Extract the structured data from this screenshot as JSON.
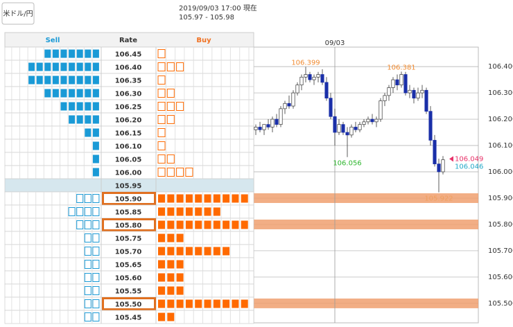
{
  "header": {
    "button": "米ドル/円",
    "timestamp": "2019/09/03 17:00 現在",
    "quote": "105.97 - 105.98"
  },
  "order_book": {
    "columns": [
      "Sell",
      "Rate",
      "Buy"
    ],
    "rows": [
      {
        "rate": "106.45",
        "sell": 7,
        "buy": 1
      },
      {
        "rate": "106.40",
        "sell": 9,
        "buy": 3
      },
      {
        "rate": "106.35",
        "sell": 9,
        "buy": 1
      },
      {
        "rate": "106.30",
        "sell": 7,
        "buy": 2
      },
      {
        "rate": "106.25",
        "sell": 5,
        "buy": 3
      },
      {
        "rate": "106.20",
        "sell": 4,
        "buy": 2
      },
      {
        "rate": "106.15",
        "sell": 2,
        "buy": 1
      },
      {
        "rate": "106.10",
        "sell": 1,
        "buy": 1
      },
      {
        "rate": "106.05",
        "sell": 1,
        "buy": 2
      },
      {
        "rate": "106.00",
        "sell": 1,
        "buy": 4
      },
      {
        "rate": "105.95",
        "current": true
      },
      {
        "rate": "105.90",
        "sell": 3,
        "buy": 10,
        "highlight": true
      },
      {
        "rate": "105.85",
        "sell": 4,
        "buy": 7
      },
      {
        "rate": "105.80",
        "sell": 3,
        "buy": 10,
        "highlight": true
      },
      {
        "rate": "105.75",
        "sell": 2,
        "buy": 3
      },
      {
        "rate": "105.70",
        "sell": 2,
        "buy": 8
      },
      {
        "rate": "105.65",
        "sell": 2,
        "buy": 3
      },
      {
        "rate": "105.60",
        "sell": 2,
        "buy": 3
      },
      {
        "rate": "105.55",
        "sell": 2,
        "buy": 3
      },
      {
        "rate": "105.50",
        "sell": 2,
        "buy": 10,
        "highlight": true
      },
      {
        "rate": "105.45",
        "sell": 2,
        "buy": 2
      }
    ]
  },
  "chart_data": {
    "type": "candlestick",
    "candles": [
      [
        106.16,
        106.18,
        106.14,
        106.17
      ],
      [
        106.17,
        106.19,
        106.15,
        106.16
      ],
      [
        106.16,
        106.18,
        106.14,
        106.18
      ],
      [
        106.18,
        106.2,
        106.16,
        106.17
      ],
      [
        106.17,
        106.21,
        106.15,
        106.2
      ],
      [
        106.2,
        106.22,
        106.17,
        106.18
      ],
      [
        106.18,
        106.25,
        106.17,
        106.24
      ],
      [
        106.24,
        106.27,
        106.22,
        106.26
      ],
      [
        106.26,
        106.29,
        106.24,
        106.25
      ],
      [
        106.25,
        106.31,
        106.24,
        106.3
      ],
      [
        106.3,
        106.34,
        106.29,
        106.33
      ],
      [
        106.33,
        106.37,
        106.31,
        106.36
      ],
      [
        106.36,
        106.399,
        106.34,
        106.37
      ],
      [
        106.37,
        106.38,
        106.34,
        106.35
      ],
      [
        106.35,
        106.37,
        106.33,
        106.36
      ],
      [
        106.36,
        106.38,
        106.34,
        106.37
      ],
      [
        106.37,
        106.39,
        106.33,
        106.34
      ],
      [
        106.34,
        106.36,
        106.27,
        106.28
      ],
      [
        106.28,
        106.3,
        106.2,
        106.21
      ],
      [
        106.21,
        106.24,
        106.1,
        106.15
      ],
      [
        106.15,
        106.2,
        106.14,
        106.18
      ],
      [
        106.18,
        106.19,
        106.14,
        106.15
      ],
      [
        106.15,
        106.17,
        106.056,
        106.14
      ],
      [
        106.14,
        106.18,
        106.13,
        106.17
      ],
      [
        106.17,
        106.19,
        106.15,
        106.16
      ],
      [
        106.16,
        106.19,
        106.15,
        106.18
      ],
      [
        106.18,
        106.2,
        106.17,
        106.19
      ],
      [
        106.19,
        106.21,
        106.18,
        106.2
      ],
      [
        106.2,
        106.22,
        106.18,
        106.19
      ],
      [
        106.19,
        106.21,
        106.17,
        106.2
      ],
      [
        106.2,
        106.28,
        106.19,
        106.27
      ],
      [
        106.27,
        106.3,
        106.25,
        106.29
      ],
      [
        106.29,
        106.33,
        106.27,
        106.32
      ],
      [
        106.32,
        106.36,
        106.3,
        106.35
      ],
      [
        106.35,
        106.37,
        106.31,
        106.33
      ],
      [
        106.33,
        106.381,
        106.32,
        106.37
      ],
      [
        106.37,
        106.38,
        106.29,
        106.3
      ],
      [
        106.3,
        106.33,
        106.28,
        106.31
      ],
      [
        106.31,
        106.32,
        106.26,
        106.28
      ],
      [
        106.28,
        106.32,
        106.27,
        106.3
      ],
      [
        106.3,
        106.33,
        106.28,
        106.31
      ],
      [
        106.31,
        106.32,
        106.22,
        106.23
      ],
      [
        106.23,
        106.25,
        106.1,
        106.12
      ],
      [
        106.12,
        106.14,
        106.02,
        106.03
      ],
      [
        106.03,
        106.05,
        105.922,
        106.0
      ],
      [
        106.0,
        106.06,
        105.99,
        106.046
      ]
    ],
    "ylim": [
      105.426,
      106.474
    ],
    "yticks": [
      {
        "value": 106.4,
        "label": "106.400"
      },
      {
        "value": 106.3,
        "label": "106.300"
      },
      {
        "value": 106.2,
        "label": "106.200"
      },
      {
        "value": 106.1,
        "label": "106.100"
      },
      {
        "value": 106.0,
        "label": "106.000"
      },
      {
        "value": 105.9,
        "label": "105.900"
      },
      {
        "value": 105.8,
        "label": "105.800"
      },
      {
        "value": 105.7,
        "label": "105.700"
      },
      {
        "value": 105.6,
        "label": "105.600"
      },
      {
        "value": 105.5,
        "label": "105.500"
      }
    ],
    "date_marker": {
      "label": "09/03",
      "index": 19
    },
    "annotations": [
      {
        "value": 106.399,
        "index": 12,
        "color": "#f08a30",
        "position": "above"
      },
      {
        "value": 106.381,
        "index": 35,
        "color": "#f08a30",
        "position": "above"
      },
      {
        "value": 106.056,
        "index": 22,
        "color": "#2cb52c",
        "position": "below"
      },
      {
        "value": 105.922,
        "index": 44,
        "color": "#f0a060",
        "position": "below"
      }
    ],
    "bid": 106.049,
    "ask": 106.046,
    "bid_color": "#e8336a",
    "ask_color": "#22a8c8",
    "up_color": "#ffffff",
    "down_color": "#1a2fa8",
    "band_color": "#f0a070"
  }
}
